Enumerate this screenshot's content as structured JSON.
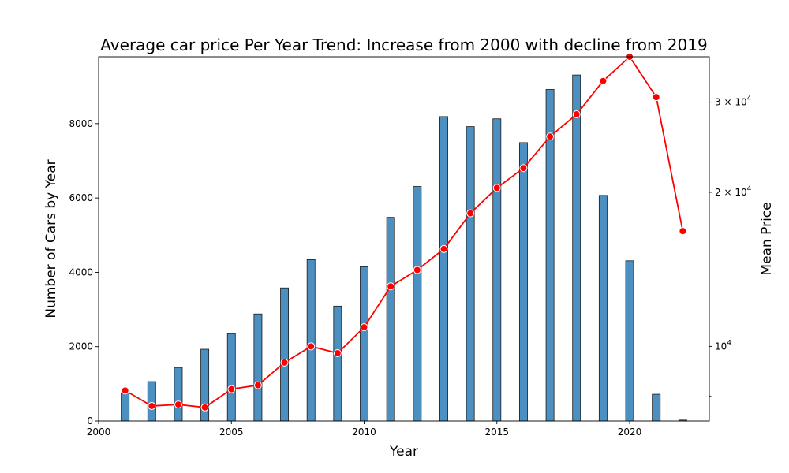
{
  "chart_data": {
    "type": "bar+line",
    "title": "Average car price Per Year Trend: Increase from 2000 with decline from 2019",
    "xlabel": "Year",
    "ylabel": "Number of Cars by Year",
    "y2label": "Mean Price",
    "xlim": [
      2000,
      2023
    ],
    "ylim": [
      0,
      9800
    ],
    "y2lim": [
      7150,
      36800
    ],
    "y2scale": "log",
    "x_ticks": [
      2000,
      2005,
      2010,
      2015,
      2020
    ],
    "x_tick_labels": [
      "2000",
      "2005",
      "2010",
      "2015",
      "2020"
    ],
    "y_ticks": [
      0,
      2000,
      4000,
      6000,
      8000
    ],
    "y_tick_labels": [
      "0",
      "2000",
      "4000",
      "6000",
      "8000"
    ],
    "y2_ticks": [
      10000,
      20000,
      30000
    ],
    "y2_tick_bases": [
      "10",
      "2 × 10",
      "3 × 10"
    ],
    "y2_tick_exponent": "4",
    "y2_minor_ticks": [
      8000
    ],
    "grid": false,
    "bar_color": "#4c8fc1",
    "line_color": "#ff0000",
    "years": [
      2001,
      2002,
      2003,
      2004,
      2005,
      2006,
      2007,
      2008,
      2009,
      2010,
      2011,
      2012,
      2013,
      2014,
      2015,
      2016,
      2017,
      2018,
      2019,
      2020,
      2021,
      2022
    ],
    "series": [
      {
        "kind": "bar",
        "values": [
          760,
          1060,
          1440,
          1930,
          2350,
          2880,
          3580,
          4340,
          3090,
          4150,
          5480,
          6310,
          8190,
          7920,
          8130,
          7490,
          8920,
          9310,
          6070,
          4310,
          720,
          25
        ]
      },
      {
        "kind": "line",
        "values": [
          8200,
          7650,
          7700,
          7600,
          8250,
          8400,
          9300,
          10000,
          9700,
          10900,
          13100,
          14100,
          15500,
          18200,
          20400,
          22300,
          25700,
          28400,
          33000,
          36800,
          30700,
          16800
        ]
      }
    ]
  }
}
